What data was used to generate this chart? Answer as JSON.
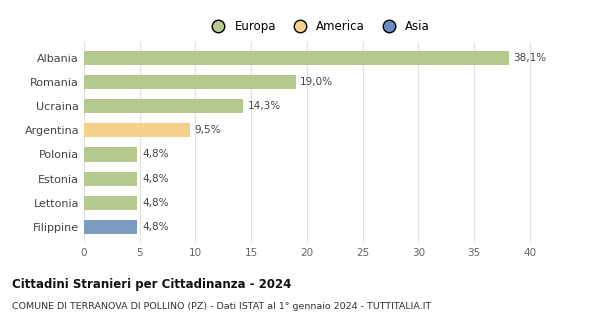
{
  "categories": [
    "Albania",
    "Romania",
    "Ucraina",
    "Argentina",
    "Polonia",
    "Estonia",
    "Lettonia",
    "Filippine"
  ],
  "values": [
    38.1,
    19.0,
    14.3,
    9.5,
    4.8,
    4.8,
    4.8,
    4.8
  ],
  "labels": [
    "38,1%",
    "19,0%",
    "14,3%",
    "9,5%",
    "4,8%",
    "4,8%",
    "4,8%",
    "4,8%"
  ],
  "bar_colors": [
    "#b5c98e",
    "#b5c98e",
    "#b5c98e",
    "#f5d08a",
    "#b5c98e",
    "#b5c98e",
    "#b5c98e",
    "#7b9bbf"
  ],
  "legend": [
    {
      "label": "Europa",
      "color": "#b5c98e"
    },
    {
      "label": "America",
      "color": "#f5d08a"
    },
    {
      "label": "Asia",
      "color": "#6a8bbf"
    }
  ],
  "xlim": [
    0,
    42
  ],
  "xticks": [
    0,
    5,
    10,
    15,
    20,
    25,
    30,
    35,
    40
  ],
  "title": "Cittadini Stranieri per Cittadinanza - 2024",
  "subtitle": "COMUNE DI TERRANOVA DI POLLINO (PZ) - Dati ISTAT al 1° gennaio 2024 - TUTTITALIA.IT",
  "background_color": "#ffffff",
  "grid_color": "#e0e0e0"
}
